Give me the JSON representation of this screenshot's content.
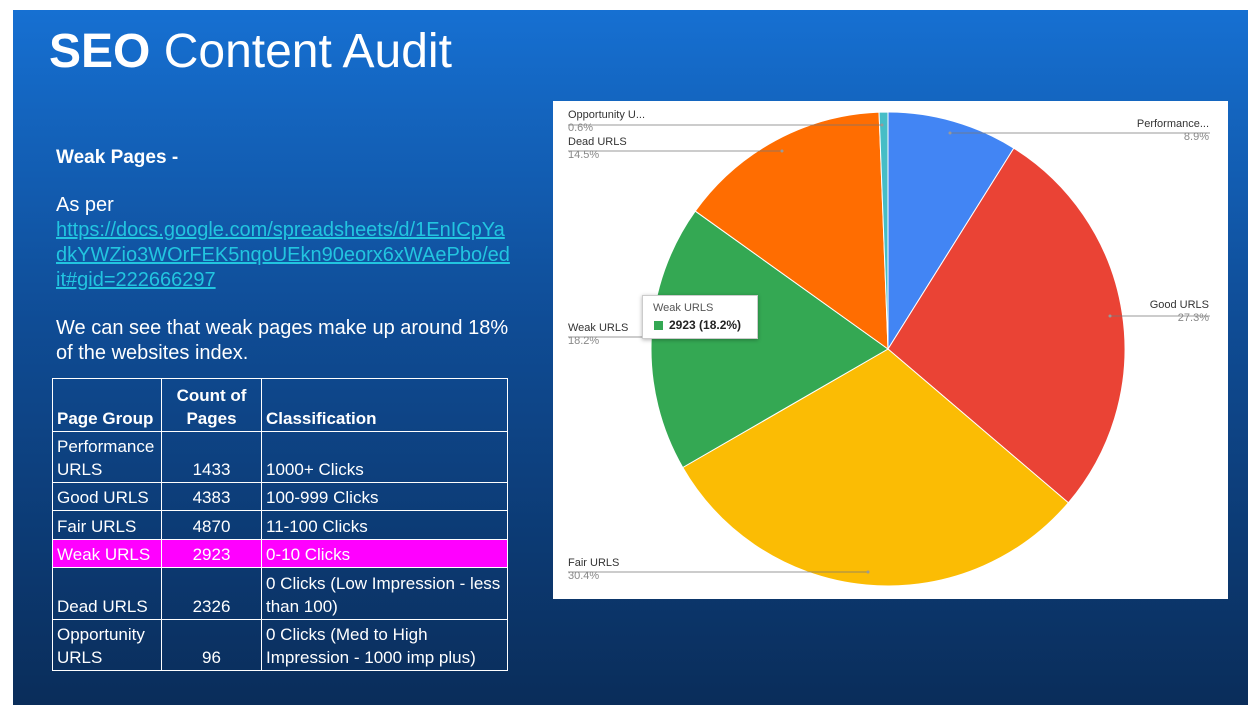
{
  "header": {
    "title_bold": "SEO",
    "title_rest": "Content Audit"
  },
  "body": {
    "heading": "Weak Pages -",
    "intro": "As per",
    "link": "https://docs.google.com/spreadsheets/d/1EnICpYadkYWZio3WOrFEK5nqoUEkn90eorx6xWAePbo/edit#gid=222666297",
    "summary": "We can see that weak pages make up around 18% of the websites index."
  },
  "table": {
    "header": [
      "Page Group",
      "Count of Pages",
      "Classification"
    ],
    "rows": [
      [
        "Performance URLS",
        "1433",
        "1000+ Clicks"
      ],
      [
        "Good URLS",
        "4383",
        "100-999 Clicks"
      ],
      [
        "Fair URLS",
        "4870",
        "11-100 Clicks"
      ],
      [
        "Weak URLS",
        "2923",
        "0-10 Clicks"
      ],
      [
        "Dead URLS",
        "2326",
        "0 Clicks (Low Impression - less than 100)"
      ],
      [
        "Opportunity URLS",
        "96",
        "0 Clicks (Med to High Impression - 1000 imp plus)"
      ]
    ],
    "highlight_row": 3,
    "highlight_color": "#ff00ff"
  },
  "chart_data": {
    "type": "pie",
    "categories": [
      "Performance...",
      "Good URLS",
      "Fair URLS",
      "Weak URLS",
      "Dead URLS",
      "Opportunity U..."
    ],
    "values": [
      8.9,
      27.3,
      30.4,
      18.2,
      14.5,
      0.6
    ],
    "value_labels": [
      "8.9%",
      "27.3%",
      "30.4%",
      "18.2%",
      "14.5%",
      "0.6%"
    ],
    "colors": [
      "#4285f4",
      "#ea4335",
      "#fbbc04",
      "#34a853",
      "#ff6d01",
      "#46bdc6"
    ],
    "tooltip": {
      "text": "2923 (18.2%)"
    }
  }
}
